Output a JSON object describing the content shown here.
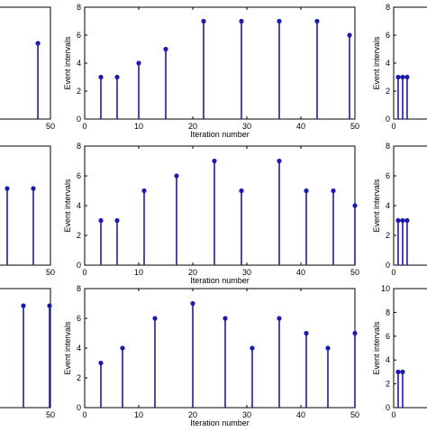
{
  "chart_data": [
    {
      "id": "r1-left",
      "type": "stem",
      "xlim": [
        null,
        50
      ],
      "ylim": [
        null,
        null
      ],
      "xticks": [
        {
          "v": 50,
          "label": "50"
        }
      ],
      "yticks": [],
      "xlabel": "",
      "ylabel": "",
      "x": [
        20,
        44
      ],
      "y": [
        null,
        null
      ]
    },
    {
      "id": "r1-center",
      "type": "stem",
      "xlim": [
        0,
        50
      ],
      "ylim": [
        0,
        8
      ],
      "xticks": [
        {
          "v": 0,
          "label": "0"
        },
        {
          "v": 10,
          "label": "10"
        },
        {
          "v": 20,
          "label": "20"
        },
        {
          "v": 30,
          "label": "30"
        },
        {
          "v": 40,
          "label": "40"
        },
        {
          "v": 50,
          "label": "50"
        }
      ],
      "yticks": [
        {
          "v": 0,
          "label": "0"
        },
        {
          "v": 2,
          "label": "2"
        },
        {
          "v": 4,
          "label": "4"
        },
        {
          "v": 6,
          "label": "6"
        },
        {
          "v": 8,
          "label": "8"
        }
      ],
      "xlabel": "Iteration number",
      "ylabel": "Event intervals",
      "x": [
        3,
        6,
        10,
        15,
        22,
        29,
        36,
        43,
        49
      ],
      "y": [
        3,
        3,
        4,
        5,
        7,
        7,
        7,
        7,
        6
      ]
    },
    {
      "id": "r1-right",
      "type": "stem",
      "xlim": [
        0,
        50
      ],
      "ylim": [
        0,
        8
      ],
      "xticks": [
        {
          "v": 0,
          "label": "0"
        }
      ],
      "yticks": [
        {
          "v": 0,
          "label": "0"
        },
        {
          "v": 2,
          "label": "2"
        },
        {
          "v": 4,
          "label": "4"
        },
        {
          "v": 6,
          "label": "6"
        },
        {
          "v": 8,
          "label": "8"
        }
      ],
      "xlabel": "",
      "ylabel": "Event intervals",
      "x": [
        3,
        6,
        9
      ],
      "y": [
        3,
        3,
        3
      ]
    },
    {
      "id": "r2-left",
      "type": "stem",
      "xlim": [
        null,
        50
      ],
      "ylim": [
        null,
        null
      ],
      "xticks": [
        {
          "v": 50,
          "label": "50"
        }
      ],
      "yticks": [],
      "xlabel": "",
      "ylabel": "",
      "x": [],
      "y": []
    },
    {
      "id": "r2-center",
      "type": "stem",
      "xlim": [
        0,
        50
      ],
      "ylim": [
        0,
        8
      ],
      "xticks": [
        {
          "v": 0,
          "label": "0"
        },
        {
          "v": 10,
          "label": "10"
        },
        {
          "v": 20,
          "label": "20"
        },
        {
          "v": 30,
          "label": "30"
        },
        {
          "v": 40,
          "label": "40"
        },
        {
          "v": 50,
          "label": "50"
        }
      ],
      "yticks": [
        {
          "v": 0,
          "label": "0"
        },
        {
          "v": 2,
          "label": "2"
        },
        {
          "v": 4,
          "label": "4"
        },
        {
          "v": 6,
          "label": "6"
        },
        {
          "v": 8,
          "label": "8"
        }
      ],
      "xlabel": "Iteration number",
      "ylabel": "Event intervals",
      "x": [
        3,
        6,
        11,
        17,
        24,
        29,
        36,
        41,
        46,
        50
      ],
      "y": [
        3,
        3,
        5,
        6,
        7,
        5,
        7,
        5,
        5,
        4
      ]
    },
    {
      "id": "r2-right",
      "type": "stem",
      "xlim": [
        0,
        50
      ],
      "ylim": [
        0,
        8
      ],
      "xticks": [
        {
          "v": 0,
          "label": "0"
        }
      ],
      "yticks": [
        {
          "v": 0,
          "label": "0"
        },
        {
          "v": 2,
          "label": "2"
        },
        {
          "v": 4,
          "label": "4"
        },
        {
          "v": 6,
          "label": "6"
        },
        {
          "v": 8,
          "label": "8"
        }
      ],
      "xlabel": "",
      "ylabel": "Event intervals",
      "x": [
        3,
        6,
        9
      ],
      "y": [
        3,
        3,
        3
      ]
    },
    {
      "id": "r3-left",
      "type": "stem",
      "xlim": [
        null,
        50
      ],
      "ylim": [
        null,
        null
      ],
      "xticks": [
        {
          "v": 50,
          "label": "50"
        }
      ],
      "yticks": [],
      "xlabel": "",
      "ylabel": "",
      "x": [],
      "y": []
    },
    {
      "id": "r3-center",
      "type": "stem",
      "xlim": [
        0,
        50
      ],
      "ylim": [
        0,
        8
      ],
      "xticks": [
        {
          "v": 0,
          "label": "0"
        },
        {
          "v": 10,
          "label": "10"
        },
        {
          "v": 20,
          "label": "20"
        },
        {
          "v": 30,
          "label": "30"
        },
        {
          "v": 40,
          "label": "40"
        },
        {
          "v": 50,
          "label": "50"
        }
      ],
      "yticks": [
        {
          "v": 0,
          "label": "0"
        },
        {
          "v": 2,
          "label": "2"
        },
        {
          "v": 4,
          "label": "4"
        },
        {
          "v": 6,
          "label": "6"
        },
        {
          "v": 8,
          "label": "8"
        }
      ],
      "xlabel": "Iteration number",
      "ylabel": "Event intervals",
      "x": [
        3,
        7,
        13,
        20,
        26,
        31,
        36,
        41,
        45,
        50
      ],
      "y": [
        3,
        4,
        6,
        7,
        6,
        4,
        6,
        5,
        4,
        5
      ]
    },
    {
      "id": "r3-right",
      "type": "stem",
      "xlim": [
        0,
        50
      ],
      "ylim": [
        0,
        10
      ],
      "xticks": [
        {
          "v": 0,
          "label": "0"
        }
      ],
      "yticks": [
        {
          "v": 0,
          "label": "0"
        },
        {
          "v": 2,
          "label": "2"
        },
        {
          "v": 4,
          "label": "4"
        },
        {
          "v": 6,
          "label": "6"
        },
        {
          "v": 8,
          "label": "8"
        },
        {
          "v": 10,
          "label": "10"
        }
      ],
      "xlabel": "",
      "ylabel": "Event intervals",
      "x": [
        3,
        6
      ],
      "y": [
        3,
        3
      ]
    }
  ]
}
